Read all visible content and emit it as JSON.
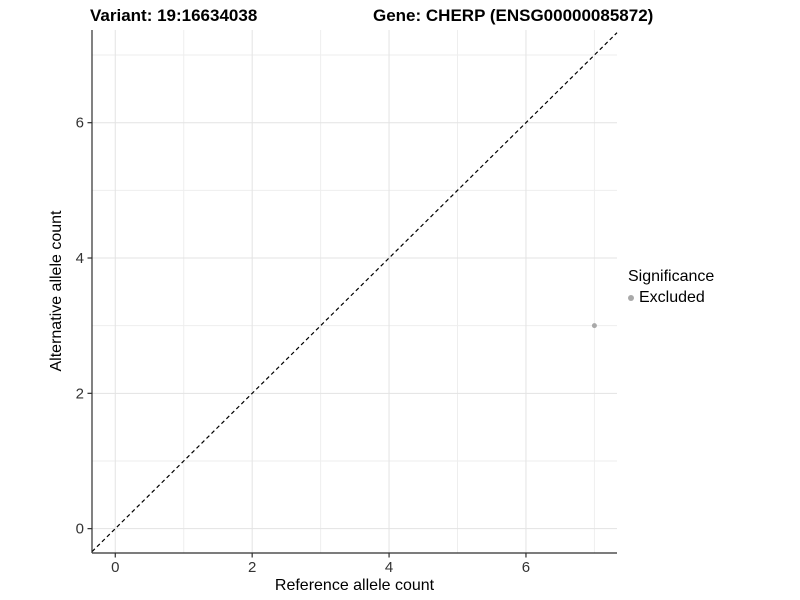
{
  "header": {
    "title_left": "Variant: 19:16634038",
    "title_right": "Gene: CHERP (ENSG00000085872)"
  },
  "chart_data": {
    "type": "scatter",
    "xlabel": "Reference allele count",
    "ylabel": "Alternative allele count",
    "xlim": [
      -0.34,
      7.33
    ],
    "ylim": [
      -0.36,
      7.37
    ],
    "x_ticks": [
      0,
      2,
      4,
      6
    ],
    "y_ticks": [
      0,
      2,
      4,
      6
    ],
    "x_minor_ticks": [
      1,
      3,
      5,
      7
    ],
    "y_minor_ticks": [
      1,
      3,
      5,
      7
    ],
    "grid": "major+minor",
    "reference_line": {
      "type": "identity",
      "equation": "y = x",
      "style": "dashed",
      "color": "#000000"
    },
    "series": [
      {
        "name": "Excluded",
        "color": "#a9a9a9",
        "marker": "circle",
        "points": [
          [
            7,
            3
          ]
        ]
      }
    ],
    "legend": {
      "title": "Significance",
      "position": "right",
      "items": [
        {
          "label": "Excluded",
          "color": "#a9a9a9",
          "marker": "circle"
        }
      ]
    },
    "colors": {
      "panel_background": "#ffffff",
      "grid_major": "#e3e3e3",
      "grid_minor": "#eeeeee",
      "axis_line": "#2e2e2e",
      "tick_text": "#333333"
    }
  }
}
